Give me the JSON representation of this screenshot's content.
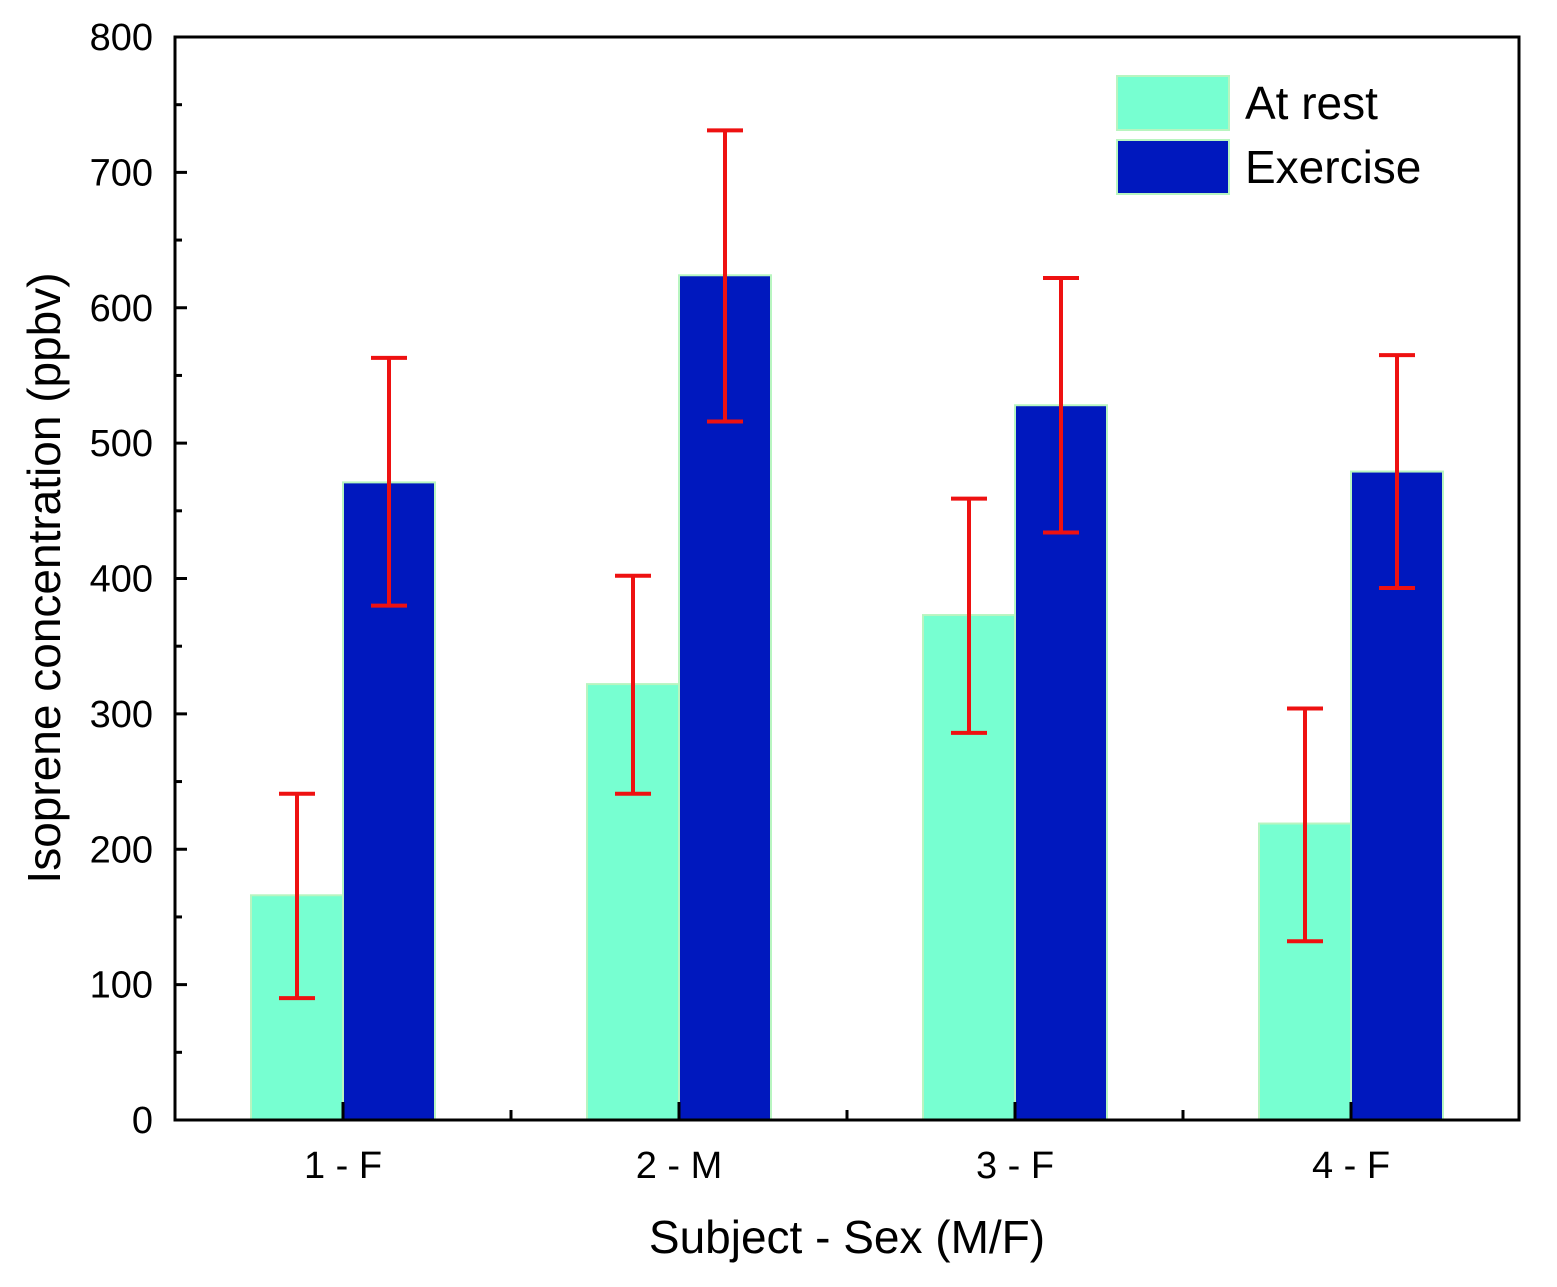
{
  "chart_data": {
    "type": "bar",
    "title": "",
    "xlabel": "Subject - Sex (M/F)",
    "ylabel": "Isoprene concentration (ppbv)",
    "ylim": [
      0,
      800
    ],
    "yticks": [
      0,
      100,
      200,
      300,
      400,
      500,
      600,
      700,
      800
    ],
    "ytick_labels": [
      "0",
      "100",
      "200",
      "300",
      "400",
      "500",
      "600",
      "700",
      "800"
    ],
    "categories": [
      "1 - F",
      "2 - M",
      "3 - F",
      "4 - F"
    ],
    "series": [
      {
        "name": "At rest",
        "color": "#77FFD1",
        "values": [
          166,
          322,
          373,
          219
        ],
        "err_low": [
          90,
          241,
          286,
          132
        ],
        "err_high": [
          241,
          402,
          459,
          304
        ]
      },
      {
        "name": "Exercise",
        "color": "#0018BE",
        "values": [
          471,
          624,
          528,
          479
        ],
        "err_low": [
          380,
          516,
          434,
          393
        ],
        "err_high": [
          563,
          731,
          622,
          565
        ]
      }
    ],
    "error_bar_color": "#EE1111",
    "bar_edge_color": "#B8F5C0",
    "legend_position": "top-right",
    "grid": false
  }
}
